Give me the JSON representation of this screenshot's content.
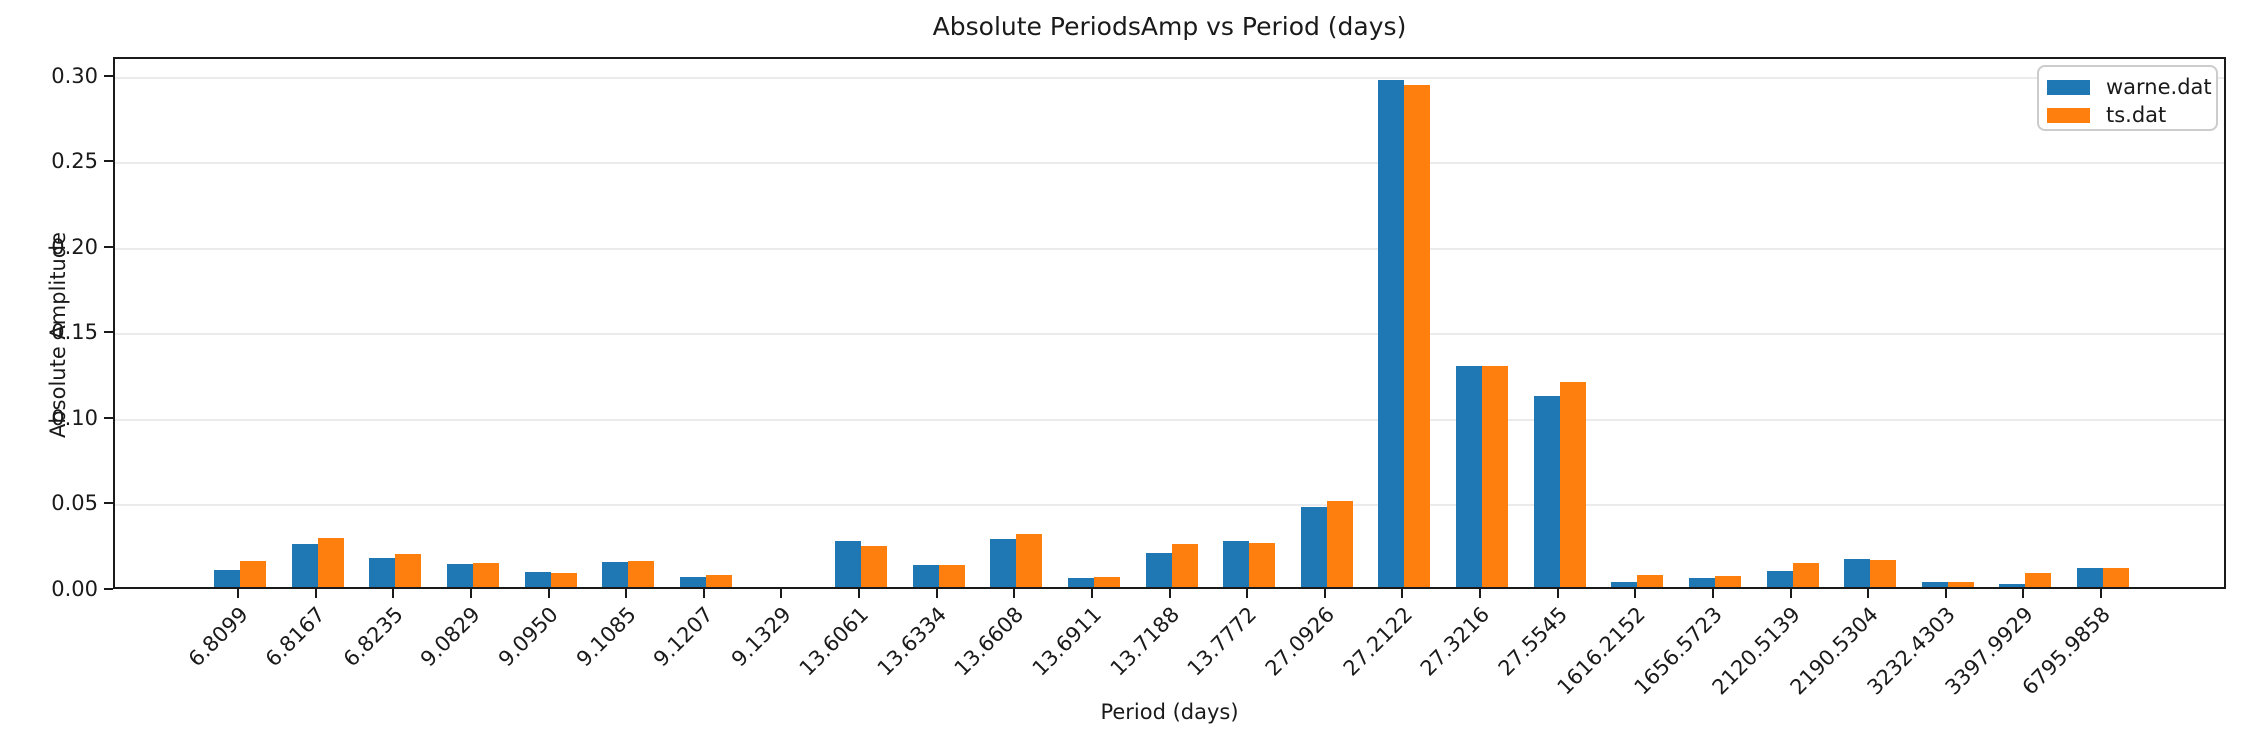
{
  "chart_data": {
    "type": "bar",
    "title": "Absolute PeriodsAmp vs Period (days)",
    "xlabel": "Period (days)",
    "ylabel": "Absolute Amplitude",
    "categories": [
      "6.8099",
      "6.8167",
      "6.8235",
      "9.0829",
      "9.0950",
      "9.1085",
      "9.1207",
      "9.1329",
      "13.6061",
      "13.6334",
      "13.6608",
      "13.6911",
      "13.7188",
      "13.7772",
      "27.0926",
      "27.2122",
      "27.3216",
      "27.5545",
      "1616.2152",
      "1656.5723",
      "2120.5139",
      "2190.5304",
      "3232.4303",
      "3397.9929",
      "6795.9858"
    ],
    "series": [
      {
        "name": "warne.dat",
        "color": "#1f77b4",
        "values": [
          0.01,
          0.025,
          0.017,
          0.0135,
          0.009,
          0.0145,
          0.006,
          0.0,
          0.027,
          0.013,
          0.028,
          0.005,
          0.02,
          0.027,
          0.0465,
          0.2965,
          0.129,
          0.1115,
          0.003,
          0.005,
          0.0095,
          0.0165,
          0.003,
          0.002,
          0.011
        ]
      },
      {
        "name": "ts.dat",
        "color": "#ff7f0e",
        "values": [
          0.015,
          0.0285,
          0.0195,
          0.014,
          0.008,
          0.015,
          0.007,
          0.0,
          0.024,
          0.013,
          0.031,
          0.006,
          0.025,
          0.026,
          0.0505,
          0.2935,
          0.129,
          0.12,
          0.007,
          0.0065,
          0.014,
          0.016,
          0.003,
          0.008,
          0.011
        ]
      }
    ],
    "yticks": [
      {
        "value": 0.0,
        "label": "0.00"
      },
      {
        "value": 0.05,
        "label": "0.05"
      },
      {
        "value": 0.1,
        "label": "0.10"
      },
      {
        "value": 0.15,
        "label": "0.15"
      },
      {
        "value": 0.2,
        "label": "0.20"
      },
      {
        "value": 0.25,
        "label": "0.25"
      },
      {
        "value": 0.3,
        "label": "0.30"
      }
    ],
    "ylim": [
      0,
      0.3111
    ],
    "grid": "horizontal-only",
    "legend_position": "upper-right"
  }
}
